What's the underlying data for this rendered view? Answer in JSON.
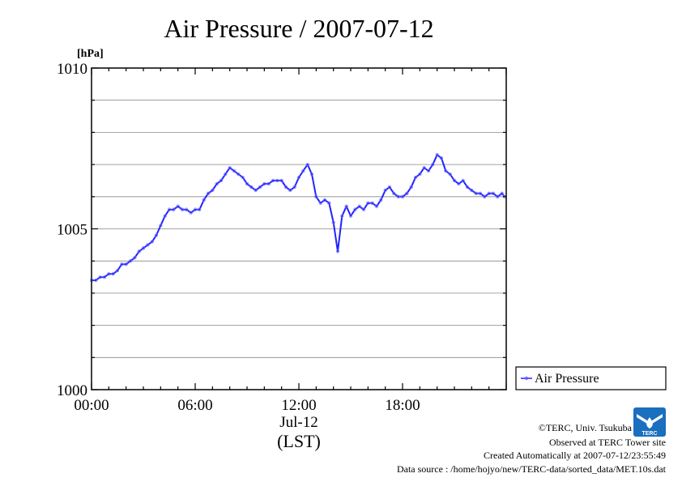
{
  "chart_data": {
    "type": "line",
    "title": "Air Pressure / 2007-07-12",
    "ylabel": "[hPa]",
    "xlabel": "(LST)",
    "x_date_label": "Jul-12",
    "ylim": [
      1000,
      1010
    ],
    "xlim": [
      0,
      24
    ],
    "y_ticks": [
      {
        "value": 1000,
        "label": "1000"
      },
      {
        "value": 1005,
        "label": "1005"
      },
      {
        "value": 1010,
        "label": "1010"
      }
    ],
    "x_ticks": [
      {
        "value": 0,
        "label": "00:00"
      },
      {
        "value": 6,
        "label": "06:00"
      },
      {
        "value": 12,
        "label": "12:00"
      },
      {
        "value": 18,
        "label": "18:00"
      }
    ],
    "grid": true,
    "legend_position": "right",
    "series": [
      {
        "name": "Air Pressure",
        "color": "#2222ff",
        "x": [
          0.0,
          0.25,
          0.5,
          0.75,
          1.0,
          1.25,
          1.5,
          1.75,
          2.0,
          2.25,
          2.5,
          2.75,
          3.0,
          3.25,
          3.5,
          3.75,
          4.0,
          4.25,
          4.5,
          4.75,
          5.0,
          5.25,
          5.5,
          5.75,
          6.0,
          6.25,
          6.5,
          6.75,
          7.0,
          7.25,
          7.5,
          7.75,
          8.0,
          8.25,
          8.5,
          8.75,
          9.0,
          9.25,
          9.5,
          9.75,
          10.0,
          10.25,
          10.5,
          10.75,
          11.0,
          11.25,
          11.5,
          11.75,
          12.0,
          12.25,
          12.5,
          12.75,
          13.0,
          13.25,
          13.5,
          13.75,
          14.0,
          14.25,
          14.5,
          14.75,
          15.0,
          15.25,
          15.5,
          15.75,
          16.0,
          16.25,
          16.5,
          16.75,
          17.0,
          17.25,
          17.5,
          17.75,
          18.0,
          18.25,
          18.5,
          18.75,
          19.0,
          19.25,
          19.5,
          19.75,
          20.0,
          20.25,
          20.5,
          20.75,
          21.0,
          21.25,
          21.5,
          21.75,
          22.0,
          22.25,
          22.5,
          22.75,
          23.0,
          23.25,
          23.5,
          23.75,
          23.9
        ],
        "y": [
          1003.4,
          1003.4,
          1003.5,
          1003.5,
          1003.6,
          1003.6,
          1003.7,
          1003.9,
          1003.9,
          1004.0,
          1004.1,
          1004.3,
          1004.4,
          1004.5,
          1004.6,
          1004.8,
          1005.1,
          1005.4,
          1005.6,
          1005.6,
          1005.7,
          1005.6,
          1005.6,
          1005.5,
          1005.6,
          1005.6,
          1005.9,
          1006.1,
          1006.2,
          1006.4,
          1006.5,
          1006.7,
          1006.9,
          1006.8,
          1006.7,
          1006.6,
          1006.4,
          1006.3,
          1006.2,
          1006.3,
          1006.4,
          1006.4,
          1006.5,
          1006.5,
          1006.5,
          1006.3,
          1006.2,
          1006.3,
          1006.6,
          1006.8,
          1007.0,
          1006.7,
          1006.0,
          1005.8,
          1005.9,
          1005.8,
          1005.2,
          1004.3,
          1005.4,
          1005.7,
          1005.4,
          1005.6,
          1005.7,
          1005.6,
          1005.8,
          1005.8,
          1005.7,
          1005.9,
          1006.2,
          1006.3,
          1006.1,
          1006.0,
          1006.0,
          1006.1,
          1006.3,
          1006.6,
          1006.7,
          1006.9,
          1006.8,
          1007.0,
          1007.3,
          1007.2,
          1006.8,
          1006.7,
          1006.5,
          1006.4,
          1006.5,
          1006.3,
          1006.2,
          1006.1,
          1006.1,
          1006.0,
          1006.1,
          1006.1,
          1006.0,
          1006.1,
          1006.0
        ],
        "legend_label": "Air Pressure"
      }
    ]
  },
  "credits": {
    "line1": "©TERC, Univ. Tsukuba",
    "line2": "Observed at TERC Tower site",
    "line3": "Created Automatically at 2007-07-12/23:55:49",
    "line4": "Data source : /home/hojyo/new/TERC-data/sorted_data/MET.10s.dat"
  },
  "logo": {
    "text": "TERC",
    "color": "#1a6fbf",
    "icon": "terc-logo-icon"
  }
}
